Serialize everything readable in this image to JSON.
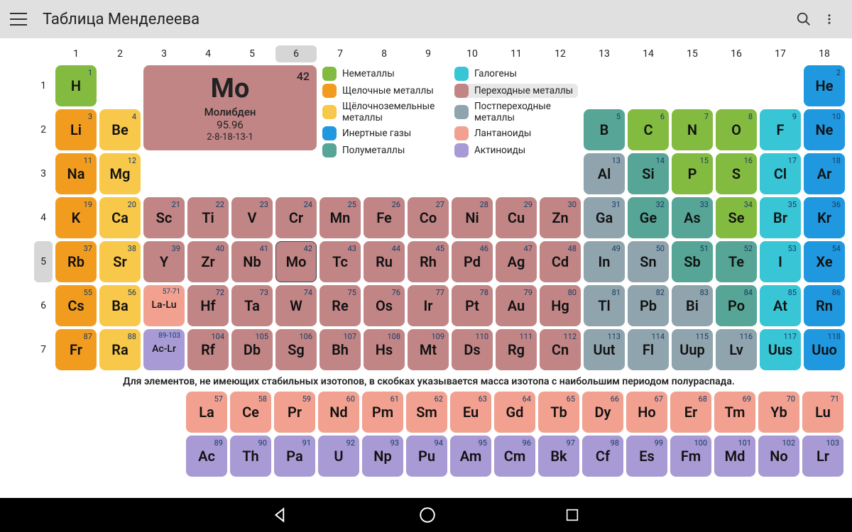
{
  "header": {
    "title": "Таблица Менделеева"
  },
  "selected_group": 6,
  "selected_period": 5,
  "detail": {
    "number": 42,
    "symbol": "Mo",
    "name": "Молибден",
    "mass": "95.96",
    "config": "2-8-18-13-1",
    "category": "trans"
  },
  "categories": {
    "nonmetal": {
      "label": "Неметаллы",
      "color": "#83bb40"
    },
    "alkali": {
      "label": "Щелочные металлы",
      "color": "#f29c1f"
    },
    "alkaline": {
      "label": "Щёлочноземельные металлы",
      "color": "#f8c84a"
    },
    "noble": {
      "label": "Инертные газы",
      "color": "#1f98e0"
    },
    "metalloid": {
      "label": "Полуметаллы",
      "color": "#56a596"
    },
    "halogen": {
      "label": "Галогены",
      "color": "#38c5d6"
    },
    "trans": {
      "label": "Переходные металлы",
      "color": "#c18586"
    },
    "post": {
      "label": "Постпереходные металлы",
      "color": "#90a4ae"
    },
    "lanth": {
      "label": "Лантаноиды",
      "color": "#f2a191"
    },
    "act": {
      "label": "Актиноиды",
      "color": "#a89ad4"
    }
  },
  "legend_order_left": [
    "nonmetal",
    "alkali",
    "alkaline",
    "noble",
    "metalloid"
  ],
  "legend_order_right": [
    "halogen",
    "trans",
    "post",
    "lanth",
    "act"
  ],
  "active_legend": "trans",
  "note": "Для элементов, не имеющих стабильных изотопов, в скобках указывается масса изотопа с наибольшим периодом полураспада.",
  "groups": [
    1,
    2,
    3,
    4,
    5,
    6,
    7,
    8,
    9,
    10,
    11,
    12,
    13,
    14,
    15,
    16,
    17,
    18
  ],
  "periods": [
    1,
    2,
    3,
    4,
    5,
    6,
    7
  ],
  "elements": [
    {
      "n": 1,
      "s": "H",
      "p": 1,
      "g": 1,
      "c": "nonmetal"
    },
    {
      "n": 2,
      "s": "He",
      "p": 1,
      "g": 18,
      "c": "noble"
    },
    {
      "n": 3,
      "s": "Li",
      "p": 2,
      "g": 1,
      "c": "alkali"
    },
    {
      "n": 4,
      "s": "Be",
      "p": 2,
      "g": 2,
      "c": "alkaline"
    },
    {
      "n": 5,
      "s": "B",
      "p": 2,
      "g": 13,
      "c": "metalloid"
    },
    {
      "n": 6,
      "s": "C",
      "p": 2,
      "g": 14,
      "c": "nonmetal"
    },
    {
      "n": 7,
      "s": "N",
      "p": 2,
      "g": 15,
      "c": "nonmetal"
    },
    {
      "n": 8,
      "s": "O",
      "p": 2,
      "g": 16,
      "c": "nonmetal"
    },
    {
      "n": 9,
      "s": "F",
      "p": 2,
      "g": 17,
      "c": "halogen"
    },
    {
      "n": 10,
      "s": "Ne",
      "p": 2,
      "g": 18,
      "c": "noble"
    },
    {
      "n": 11,
      "s": "Na",
      "p": 3,
      "g": 1,
      "c": "alkali"
    },
    {
      "n": 12,
      "s": "Mg",
      "p": 3,
      "g": 2,
      "c": "alkaline"
    },
    {
      "n": 13,
      "s": "Al",
      "p": 3,
      "g": 13,
      "c": "post"
    },
    {
      "n": 14,
      "s": "Si",
      "p": 3,
      "g": 14,
      "c": "metalloid"
    },
    {
      "n": 15,
      "s": "P",
      "p": 3,
      "g": 15,
      "c": "nonmetal"
    },
    {
      "n": 16,
      "s": "S",
      "p": 3,
      "g": 16,
      "c": "nonmetal"
    },
    {
      "n": 17,
      "s": "Cl",
      "p": 3,
      "g": 17,
      "c": "halogen"
    },
    {
      "n": 18,
      "s": "Ar",
      "p": 3,
      "g": 18,
      "c": "noble"
    },
    {
      "n": 19,
      "s": "K",
      "p": 4,
      "g": 1,
      "c": "alkali"
    },
    {
      "n": 20,
      "s": "Ca",
      "p": 4,
      "g": 2,
      "c": "alkaline"
    },
    {
      "n": 21,
      "s": "Sc",
      "p": 4,
      "g": 3,
      "c": "trans"
    },
    {
      "n": 22,
      "s": "Ti",
      "p": 4,
      "g": 4,
      "c": "trans"
    },
    {
      "n": 23,
      "s": "V",
      "p": 4,
      "g": 5,
      "c": "trans"
    },
    {
      "n": 24,
      "s": "Cr",
      "p": 4,
      "g": 6,
      "c": "trans"
    },
    {
      "n": 25,
      "s": "Mn",
      "p": 4,
      "g": 7,
      "c": "trans"
    },
    {
      "n": 26,
      "s": "Fe",
      "p": 4,
      "g": 8,
      "c": "trans"
    },
    {
      "n": 27,
      "s": "Co",
      "p": 4,
      "g": 9,
      "c": "trans"
    },
    {
      "n": 28,
      "s": "Ni",
      "p": 4,
      "g": 10,
      "c": "trans"
    },
    {
      "n": 29,
      "s": "Cu",
      "p": 4,
      "g": 11,
      "c": "trans"
    },
    {
      "n": 30,
      "s": "Zn",
      "p": 4,
      "g": 12,
      "c": "trans"
    },
    {
      "n": 31,
      "s": "Ga",
      "p": 4,
      "g": 13,
      "c": "post"
    },
    {
      "n": 32,
      "s": "Ge",
      "p": 4,
      "g": 14,
      "c": "metalloid"
    },
    {
      "n": 33,
      "s": "As",
      "p": 4,
      "g": 15,
      "c": "metalloid"
    },
    {
      "n": 34,
      "s": "Se",
      "p": 4,
      "g": 16,
      "c": "nonmetal"
    },
    {
      "n": 35,
      "s": "Br",
      "p": 4,
      "g": 17,
      "c": "halogen"
    },
    {
      "n": 36,
      "s": "Kr",
      "p": 4,
      "g": 18,
      "c": "noble"
    },
    {
      "n": 37,
      "s": "Rb",
      "p": 5,
      "g": 1,
      "c": "alkali"
    },
    {
      "n": 38,
      "s": "Sr",
      "p": 5,
      "g": 2,
      "c": "alkaline"
    },
    {
      "n": 39,
      "s": "Y",
      "p": 5,
      "g": 3,
      "c": "trans"
    },
    {
      "n": 40,
      "s": "Zr",
      "p": 5,
      "g": 4,
      "c": "trans"
    },
    {
      "n": 41,
      "s": "Nb",
      "p": 5,
      "g": 5,
      "c": "trans"
    },
    {
      "n": 42,
      "s": "Mo",
      "p": 5,
      "g": 6,
      "c": "trans"
    },
    {
      "n": 43,
      "s": "Tc",
      "p": 5,
      "g": 7,
      "c": "trans"
    },
    {
      "n": 44,
      "s": "Ru",
      "p": 5,
      "g": 8,
      "c": "trans"
    },
    {
      "n": 45,
      "s": "Rh",
      "p": 5,
      "g": 9,
      "c": "trans"
    },
    {
      "n": 46,
      "s": "Pd",
      "p": 5,
      "g": 10,
      "c": "trans"
    },
    {
      "n": 47,
      "s": "Ag",
      "p": 5,
      "g": 11,
      "c": "trans"
    },
    {
      "n": 48,
      "s": "Cd",
      "p": 5,
      "g": 12,
      "c": "trans"
    },
    {
      "n": 49,
      "s": "In",
      "p": 5,
      "g": 13,
      "c": "post"
    },
    {
      "n": 50,
      "s": "Sn",
      "p": 5,
      "g": 14,
      "c": "post"
    },
    {
      "n": 51,
      "s": "Sb",
      "p": 5,
      "g": 15,
      "c": "metalloid"
    },
    {
      "n": 52,
      "s": "Te",
      "p": 5,
      "g": 16,
      "c": "metalloid"
    },
    {
      "n": 53,
      "s": "I",
      "p": 5,
      "g": 17,
      "c": "halogen"
    },
    {
      "n": 54,
      "s": "Xe",
      "p": 5,
      "g": 18,
      "c": "noble"
    },
    {
      "n": 55,
      "s": "Cs",
      "p": 6,
      "g": 1,
      "c": "alkali"
    },
    {
      "n": 56,
      "s": "Ba",
      "p": 6,
      "g": 2,
      "c": "alkaline"
    },
    {
      "n": "57-71",
      "s": "La-Lu",
      "p": 6,
      "g": 3,
      "c": "lanth",
      "range": true
    },
    {
      "n": 72,
      "s": "Hf",
      "p": 6,
      "g": 4,
      "c": "trans"
    },
    {
      "n": 73,
      "s": "Ta",
      "p": 6,
      "g": 5,
      "c": "trans"
    },
    {
      "n": 74,
      "s": "W",
      "p": 6,
      "g": 6,
      "c": "trans"
    },
    {
      "n": 75,
      "s": "Re",
      "p": 6,
      "g": 7,
      "c": "trans"
    },
    {
      "n": 76,
      "s": "Os",
      "p": 6,
      "g": 8,
      "c": "trans"
    },
    {
      "n": 77,
      "s": "Ir",
      "p": 6,
      "g": 9,
      "c": "trans"
    },
    {
      "n": 78,
      "s": "Pt",
      "p": 6,
      "g": 10,
      "c": "trans"
    },
    {
      "n": 79,
      "s": "Au",
      "p": 6,
      "g": 11,
      "c": "trans"
    },
    {
      "n": 80,
      "s": "Hg",
      "p": 6,
      "g": 12,
      "c": "trans"
    },
    {
      "n": 81,
      "s": "Tl",
      "p": 6,
      "g": 13,
      "c": "post"
    },
    {
      "n": 82,
      "s": "Pb",
      "p": 6,
      "g": 14,
      "c": "post"
    },
    {
      "n": 83,
      "s": "Bi",
      "p": 6,
      "g": 15,
      "c": "post"
    },
    {
      "n": 84,
      "s": "Po",
      "p": 6,
      "g": 16,
      "c": "metalloid"
    },
    {
      "n": 85,
      "s": "At",
      "p": 6,
      "g": 17,
      "c": "halogen"
    },
    {
      "n": 86,
      "s": "Rn",
      "p": 6,
      "g": 18,
      "c": "noble"
    },
    {
      "n": 87,
      "s": "Fr",
      "p": 7,
      "g": 1,
      "c": "alkali"
    },
    {
      "n": 88,
      "s": "Ra",
      "p": 7,
      "g": 2,
      "c": "alkaline"
    },
    {
      "n": "89-103",
      "s": "Ac-Lr",
      "p": 7,
      "g": 3,
      "c": "act",
      "range": true
    },
    {
      "n": 104,
      "s": "Rf",
      "p": 7,
      "g": 4,
      "c": "trans"
    },
    {
      "n": 105,
      "s": "Db",
      "p": 7,
      "g": 5,
      "c": "trans"
    },
    {
      "n": 106,
      "s": "Sg",
      "p": 7,
      "g": 6,
      "c": "trans"
    },
    {
      "n": 107,
      "s": "Bh",
      "p": 7,
      "g": 7,
      "c": "trans"
    },
    {
      "n": 108,
      "s": "Hs",
      "p": 7,
      "g": 8,
      "c": "trans"
    },
    {
      "n": 109,
      "s": "Mt",
      "p": 7,
      "g": 9,
      "c": "trans"
    },
    {
      "n": 110,
      "s": "Ds",
      "p": 7,
      "g": 10,
      "c": "trans"
    },
    {
      "n": 111,
      "s": "Rg",
      "p": 7,
      "g": 11,
      "c": "trans"
    },
    {
      "n": 112,
      "s": "Cn",
      "p": 7,
      "g": 12,
      "c": "trans"
    },
    {
      "n": 113,
      "s": "Uut",
      "p": 7,
      "g": 13,
      "c": "post"
    },
    {
      "n": 114,
      "s": "Fl",
      "p": 7,
      "g": 14,
      "c": "post"
    },
    {
      "n": 115,
      "s": "Uup",
      "p": 7,
      "g": 15,
      "c": "post"
    },
    {
      "n": 116,
      "s": "Lv",
      "p": 7,
      "g": 16,
      "c": "post"
    },
    {
      "n": 117,
      "s": "Uus",
      "p": 7,
      "g": 17,
      "c": "halogen"
    },
    {
      "n": 118,
      "s": "Uuo",
      "p": 7,
      "g": 18,
      "c": "noble"
    }
  ],
  "lanthanides": [
    {
      "n": 57,
      "s": "La"
    },
    {
      "n": 58,
      "s": "Ce"
    },
    {
      "n": 59,
      "s": "Pr"
    },
    {
      "n": 60,
      "s": "Nd"
    },
    {
      "n": 61,
      "s": "Pm"
    },
    {
      "n": 62,
      "s": "Sm"
    },
    {
      "n": 63,
      "s": "Eu"
    },
    {
      "n": 64,
      "s": "Gd"
    },
    {
      "n": 65,
      "s": "Tb"
    },
    {
      "n": 66,
      "s": "Dy"
    },
    {
      "n": 67,
      "s": "Ho"
    },
    {
      "n": 68,
      "s": "Er"
    },
    {
      "n": 69,
      "s": "Tm"
    },
    {
      "n": 70,
      "s": "Yb"
    },
    {
      "n": 71,
      "s": "Lu"
    }
  ],
  "actinides": [
    {
      "n": 89,
      "s": "Ac"
    },
    {
      "n": 90,
      "s": "Th"
    },
    {
      "n": 91,
      "s": "Pa"
    },
    {
      "n": 92,
      "s": "U"
    },
    {
      "n": 93,
      "s": "Np"
    },
    {
      "n": 94,
      "s": "Pu"
    },
    {
      "n": 95,
      "s": "Am"
    },
    {
      "n": 96,
      "s": "Cm"
    },
    {
      "n": 97,
      "s": "Bk"
    },
    {
      "n": 98,
      "s": "Cf"
    },
    {
      "n": 99,
      "s": "Es"
    },
    {
      "n": 100,
      "s": "Fm"
    },
    {
      "n": 101,
      "s": "Md"
    },
    {
      "n": 102,
      "s": "No"
    },
    {
      "n": 103,
      "s": "Lr"
    }
  ]
}
